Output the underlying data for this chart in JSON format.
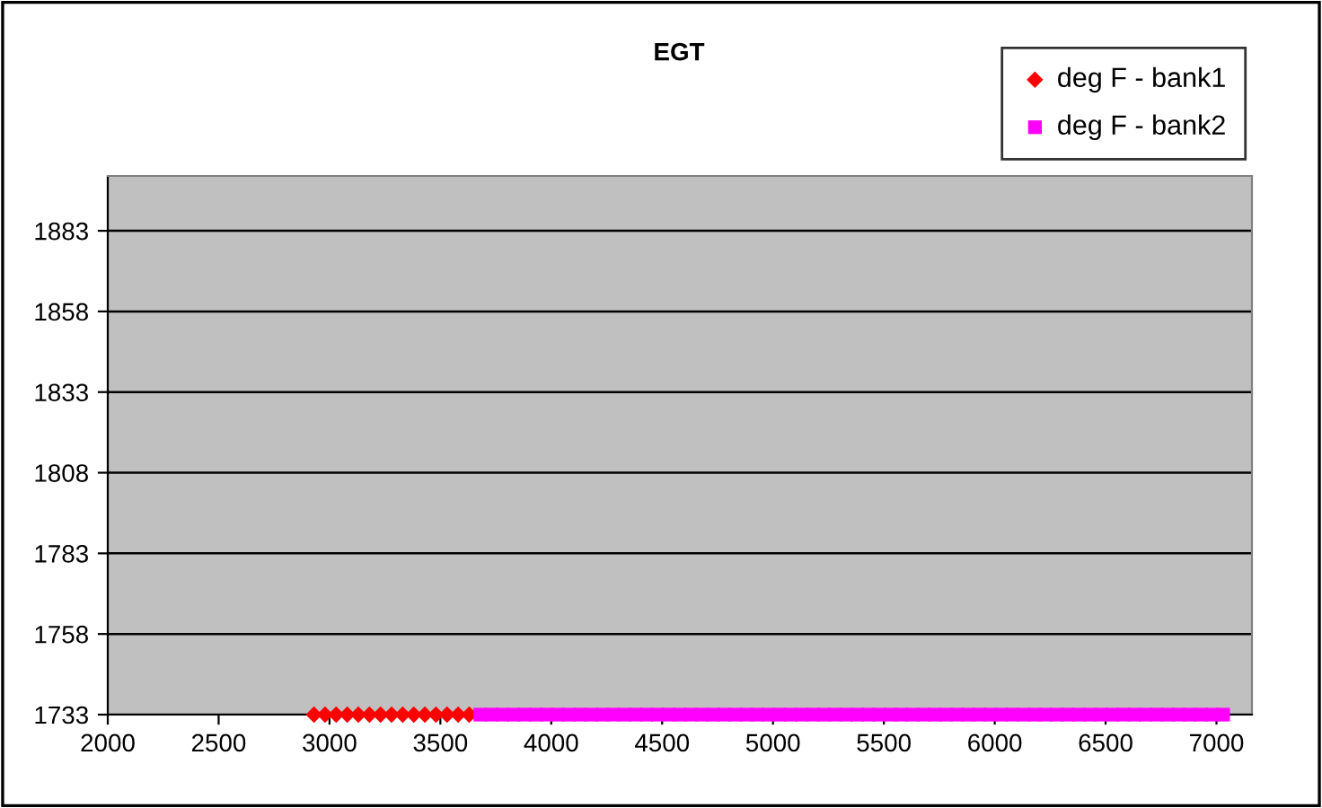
{
  "chart_data": {
    "type": "scatter",
    "title": "EGT",
    "xlim": [
      2000,
      7160
    ],
    "xticks": [
      2000,
      2500,
      3000,
      3500,
      4000,
      4500,
      5000,
      5500,
      6000,
      6500,
      7000
    ],
    "ylim": [
      1733,
      1900
    ],
    "yticks": [
      1733,
      1758,
      1783,
      1808,
      1833,
      1858,
      1883
    ],
    "grid": "y",
    "legend": "top right",
    "series": [
      {
        "name": "deg F - bank1",
        "color": "#ff0000",
        "marker": "diamond",
        "x": [
          2930,
          2980,
          3030,
          3080,
          3130,
          3180,
          3230,
          3280,
          3330,
          3380,
          3430,
          3480,
          3530,
          3580,
          3630
        ],
        "values": [
          1733,
          1733,
          1733,
          1733,
          1733,
          1733,
          1733,
          1733,
          1733,
          1733,
          1733,
          1733,
          1733,
          1733,
          1733
        ]
      },
      {
        "name": "deg F - bank2",
        "color": "#ff00ff",
        "marker": "square",
        "x": [
          3680,
          3730,
          3780,
          3830,
          3880,
          3930,
          3980,
          4030,
          4080,
          4130,
          4180,
          4230,
          4280,
          4330,
          4380,
          4430,
          4480,
          4530,
          4580,
          4630,
          4680,
          4730,
          4780,
          4830,
          4880,
          4930,
          4980,
          5030,
          5080,
          5130,
          5180,
          5230,
          5280,
          5330,
          5380,
          5430,
          5480,
          5530,
          5580,
          5630,
          5680,
          5730,
          5780,
          5830,
          5880,
          5930,
          5980,
          6030,
          6080,
          6130,
          6180,
          6230,
          6280,
          6330,
          6380,
          6430,
          6480,
          6530,
          6580,
          6630,
          6680,
          6730,
          6780,
          6830,
          6880,
          6930,
          6980,
          7030
        ],
        "values": [
          1733,
          1733,
          1733,
          1733,
          1733,
          1733,
          1733,
          1733,
          1733,
          1733,
          1733,
          1733,
          1733,
          1733,
          1733,
          1733,
          1733,
          1733,
          1733,
          1733,
          1733,
          1733,
          1733,
          1733,
          1733,
          1733,
          1733,
          1733,
          1733,
          1733,
          1733,
          1733,
          1733,
          1733,
          1733,
          1733,
          1733,
          1733,
          1733,
          1733,
          1733,
          1733,
          1733,
          1733,
          1733,
          1733,
          1733,
          1733,
          1733,
          1733,
          1733,
          1733,
          1733,
          1733,
          1733,
          1733,
          1733,
          1733,
          1733,
          1733,
          1733,
          1733,
          1733,
          1733,
          1733,
          1733,
          1733,
          1733
        ]
      }
    ]
  }
}
